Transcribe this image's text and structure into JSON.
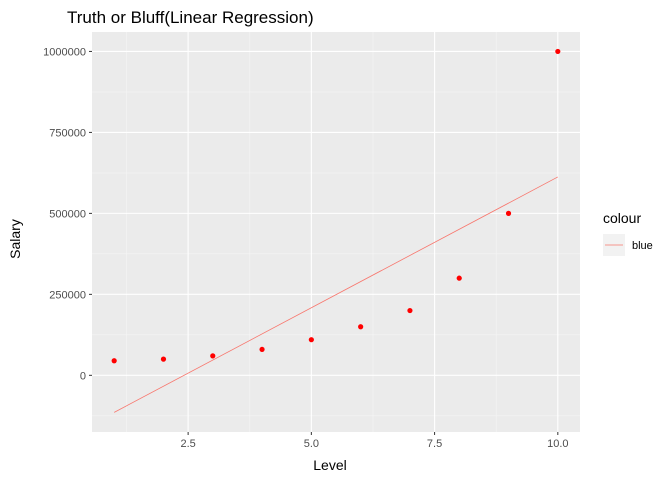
{
  "chart_data": {
    "type": "scatter",
    "title": "Truth or Bluff(Linear Regression)",
    "xlabel": "Level",
    "ylabel": "Salary",
    "xlim": [
      0.55,
      10.45
    ],
    "ylim": [
      -175000,
      1060000
    ],
    "x_ticks": [
      2.5,
      5.0,
      7.5,
      10.0
    ],
    "x_tick_labels": [
      "2.5",
      "5.0",
      "7.5",
      "10.0"
    ],
    "y_ticks": [
      0,
      250000,
      500000,
      750000,
      1000000
    ],
    "y_tick_labels": [
      "0",
      "250000",
      "500000",
      "750000",
      "1000000"
    ],
    "grid": true,
    "series": [
      {
        "name": "points",
        "kind": "scatter",
        "color": "#ff0000",
        "x": [
          1,
          2,
          3,
          4,
          5,
          6,
          7,
          8,
          9,
          10
        ],
        "y": [
          45000,
          50000,
          60000,
          80000,
          110000,
          150000,
          200000,
          300000,
          500000,
          1000000
        ]
      },
      {
        "name": "blue",
        "kind": "line",
        "color": "#f8766d",
        "x": [
          1,
          10
        ],
        "y": [
          -114454.5,
          612454.5
        ]
      }
    ],
    "legend": {
      "title": "colour",
      "placement": "right",
      "items": [
        "blue"
      ]
    },
    "colors": {
      "panel_bg": "#ebebeb",
      "grid_major": "#ffffff",
      "grid_minor": "#f5f5f5",
      "point": "#ff0000",
      "line": "#f8766d"
    }
  }
}
